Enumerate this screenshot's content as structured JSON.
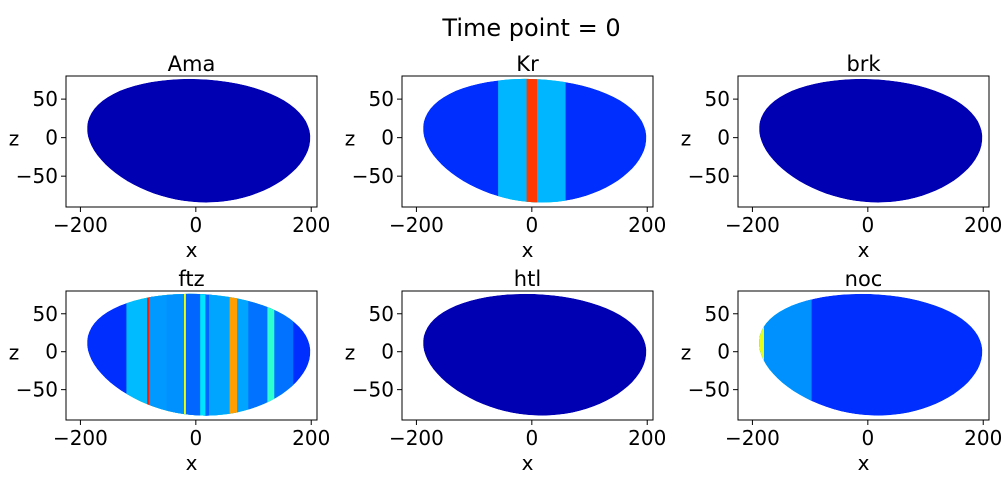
{
  "figure": {
    "title": "Time point = 0"
  },
  "chart_data": [
    {
      "type": "scatter",
      "title": "Ama",
      "xlabel": "x",
      "ylabel": "z",
      "xlim": [
        -225,
        210
      ],
      "ylim": [
        -90,
        80
      ],
      "xticks": [
        -200,
        0,
        200
      ],
      "yticks": [
        50,
        0,
        -50
      ],
      "color_scale": "jet",
      "bands": []
    },
    {
      "type": "scatter",
      "title": "Kr",
      "xlabel": "x",
      "ylabel": "z",
      "xlim": [
        -225,
        210
      ],
      "ylim": [
        -90,
        80
      ],
      "xticks": [
        -200,
        0,
        200
      ],
      "yticks": [
        50,
        0,
        -50
      ],
      "color_scale": "jet",
      "bands": [
        {
          "x": 0,
          "width": 18,
          "level": 0.82
        }
      ]
    },
    {
      "type": "scatter",
      "title": "brk",
      "xlabel": "x",
      "ylabel": "z",
      "xlim": [
        -225,
        210
      ],
      "ylim": [
        -90,
        80
      ],
      "xticks": [
        -200,
        0,
        200
      ],
      "yticks": [
        50,
        0,
        -50
      ],
      "color_scale": "jet",
      "bands": []
    },
    {
      "type": "scatter",
      "title": "ftz",
      "xlabel": "x",
      "ylabel": "z",
      "xlim": [
        -225,
        210
      ],
      "ylim": [
        -90,
        80
      ],
      "xticks": [
        -200,
        0,
        200
      ],
      "yticks": [
        50,
        0,
        -50
      ],
      "color_scale": "jet",
      "bands": [
        {
          "x": -78,
          "width": 13,
          "level": 0.85
        },
        {
          "x": -45,
          "width": 11,
          "level": 0.65
        },
        {
          "x": -15,
          "width": 11,
          "level": 0.6
        },
        {
          "x": 12,
          "width": 9,
          "level": 0.35
        },
        {
          "x": 65,
          "width": 13,
          "level": 0.72
        },
        {
          "x": 130,
          "width": 12,
          "level": 0.42
        }
      ]
    },
    {
      "type": "scatter",
      "title": "htl",
      "xlabel": "x",
      "ylabel": "z",
      "xlim": [
        -225,
        210
      ],
      "ylim": [
        -90,
        80
      ],
      "xticks": [
        -200,
        0,
        200
      ],
      "yticks": [
        50,
        0,
        -50
      ],
      "color_scale": "jet",
      "bands": []
    },
    {
      "type": "scatter",
      "title": "noc",
      "xlabel": "x",
      "ylabel": "z",
      "xlim": [
        -225,
        210
      ],
      "ylim": [
        -90,
        80
      ],
      "xticks": [
        -200,
        0,
        200
      ],
      "yticks": [
        50,
        0,
        -50
      ],
      "color_scale": "jet",
      "bands": [
        {
          "x": -195,
          "width": 30,
          "level": 0.6
        }
      ]
    }
  ]
}
